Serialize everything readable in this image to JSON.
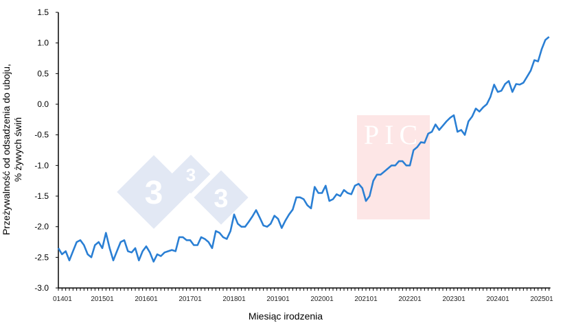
{
  "chart_data": {
    "type": "line",
    "title": "",
    "xlabel": "Miesiąc irodzenia",
    "ylabel_lines": [
      "Przeżywalność od odsadzenia do uboju,",
      "% żywych świń"
    ],
    "ylim": [
      -3.0,
      1.5
    ],
    "yticks": [
      "1.5",
      "1.0",
      "0.5",
      "0.0",
      "-0.5",
      "-1.0",
      "-1.5",
      "-2.0",
      "-2.5",
      "-3.0"
    ],
    "xticks": [
      "01401",
      "201501",
      "201601",
      "201701",
      "201801",
      "201901",
      "202001",
      "202101",
      "202201",
      "202301",
      "202401",
      "202501"
    ],
    "x_start": "201401",
    "x_end": "202503",
    "grid": false,
    "line_color": "#2a7fd4",
    "series": [
      {
        "values": [
          -2.35,
          -2.45,
          -2.4,
          -2.55,
          -2.4,
          -2.25,
          -2.22,
          -2.3,
          -2.45,
          -2.5,
          -2.3,
          -2.25,
          -2.35,
          -2.1,
          -2.35,
          -2.55,
          -2.4,
          -2.25,
          -2.22,
          -2.4,
          -2.42,
          -2.35,
          -2.55,
          -2.4,
          -2.32,
          -2.42,
          -2.57,
          -2.45,
          -2.48,
          -2.42,
          -2.4,
          -2.38,
          -2.4,
          -2.17,
          -2.17,
          -2.22,
          -2.22,
          -2.3,
          -2.3,
          -2.17,
          -2.2,
          -2.25,
          -2.35,
          -2.07,
          -2.1,
          -2.17,
          -2.2,
          -2.07,
          -1.8,
          -1.95,
          -2.0,
          -2.0,
          -1.92,
          -1.83,
          -1.73,
          -1.85,
          -1.98,
          -2.0,
          -1.95,
          -1.82,
          -1.87,
          -2.02,
          -1.9,
          -1.8,
          -1.72,
          -1.52,
          -1.52,
          -1.55,
          -1.65,
          -1.7,
          -1.35,
          -1.45,
          -1.45,
          -1.33,
          -1.58,
          -1.55,
          -1.47,
          -1.5,
          -1.4,
          -1.45,
          -1.47,
          -1.33,
          -1.3,
          -1.37,
          -1.58,
          -1.5,
          -1.25,
          -1.15,
          -1.15,
          -1.1,
          -1.05,
          -1.0,
          -1.0,
          -0.93,
          -0.93,
          -1.0,
          -1.0,
          -0.75,
          -0.7,
          -0.62,
          -0.63,
          -0.48,
          -0.45,
          -0.33,
          -0.42,
          -0.35,
          -0.28,
          -0.22,
          -0.18,
          -0.45,
          -0.42,
          -0.5,
          -0.28,
          -0.2,
          -0.07,
          -0.12,
          -0.05,
          0.0,
          0.12,
          0.32,
          0.2,
          0.22,
          0.33,
          0.38,
          0.2,
          0.33,
          0.32,
          0.35,
          0.45,
          0.55,
          0.72,
          0.7,
          0.9,
          1.05,
          1.1
        ]
      }
    ]
  },
  "watermarks": {
    "logo_333": [
      "3",
      "3",
      "3"
    ],
    "logo_pic": "PIC",
    "logo_333_color": "#dfe6f3",
    "logo_pic_color": "#fde4e4"
  }
}
